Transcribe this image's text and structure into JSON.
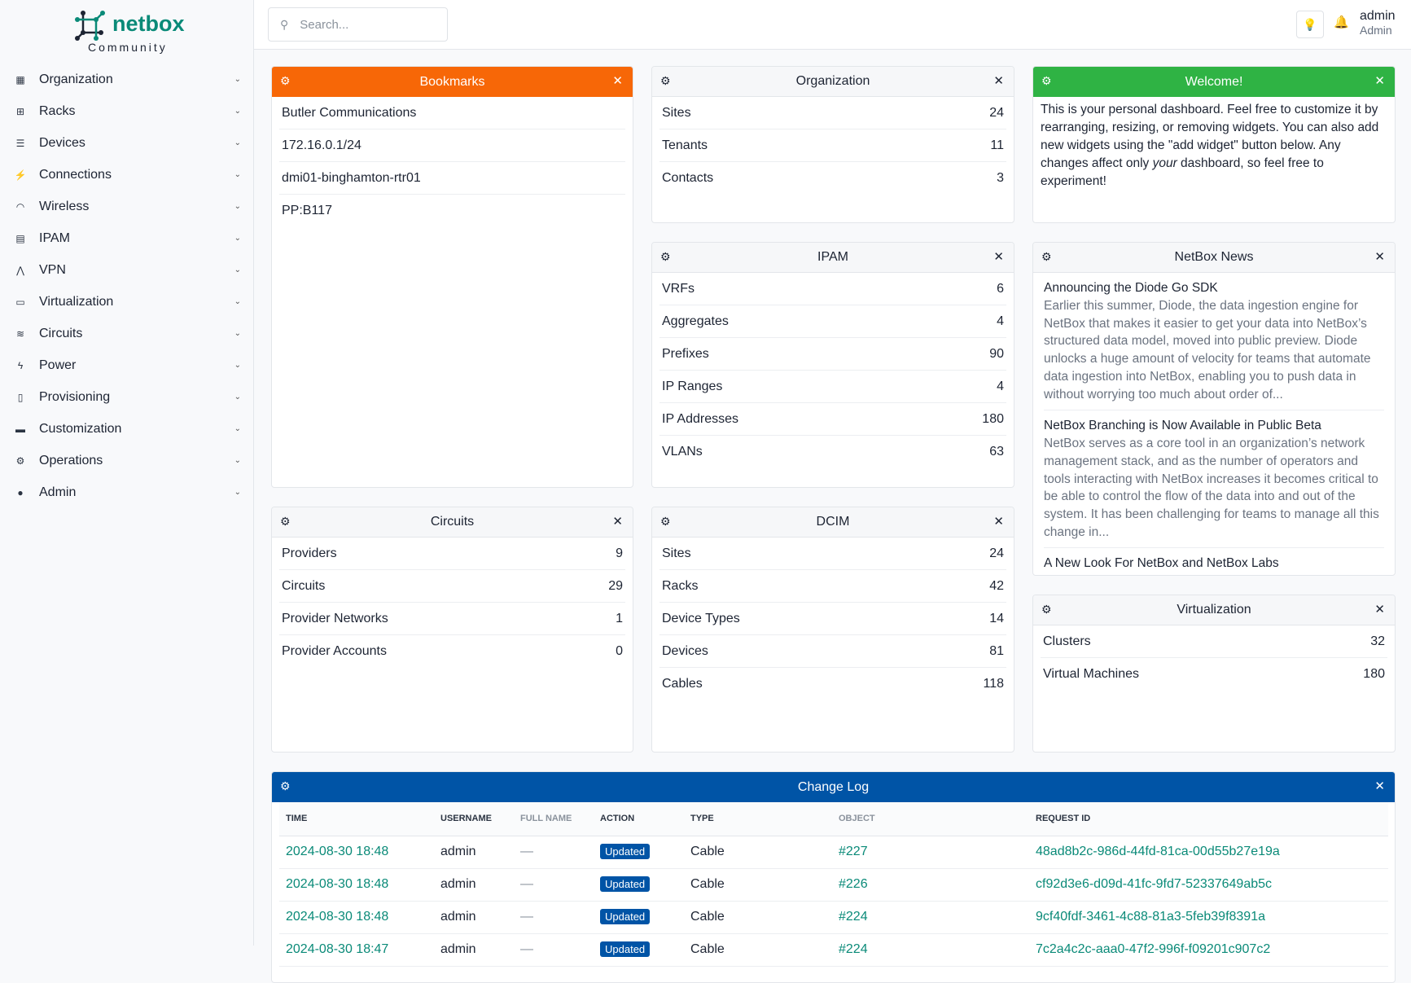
{
  "brand": {
    "name": "netbox",
    "edition": "Community",
    "color": "#0a8a78"
  },
  "sidebar": {
    "items": [
      {
        "label": "Organization",
        "icon": "building-icon"
      },
      {
        "label": "Racks",
        "icon": "rack-icon"
      },
      {
        "label": "Devices",
        "icon": "server-icon"
      },
      {
        "label": "Connections",
        "icon": "plug-icon"
      },
      {
        "label": "Wireless",
        "icon": "wifi-icon"
      },
      {
        "label": "IPAM",
        "icon": "ipam-icon"
      },
      {
        "label": "VPN",
        "icon": "vpn-icon"
      },
      {
        "label": "Virtualization",
        "icon": "monitor-icon"
      },
      {
        "label": "Circuits",
        "icon": "circuit-icon"
      },
      {
        "label": "Power",
        "icon": "bolt-icon"
      },
      {
        "label": "Provisioning",
        "icon": "file-icon"
      },
      {
        "label": "Customization",
        "icon": "toolbox-icon"
      },
      {
        "label": "Operations",
        "icon": "cogs-icon"
      },
      {
        "label": "Admin",
        "icon": "users-icon"
      }
    ]
  },
  "header": {
    "search_placeholder": "Search...",
    "user": "admin",
    "role": "Admin"
  },
  "bookmarks": {
    "title": "Bookmarks",
    "color": "#f76707",
    "items": [
      "Butler Communications",
      "172.16.0.1/24",
      "dmi01-binghamton-rtr01",
      "PP:B117"
    ]
  },
  "organization": {
    "title": "Organization",
    "rows": [
      {
        "label": "Sites",
        "value": "24"
      },
      {
        "label": "Tenants",
        "value": "11"
      },
      {
        "label": "Contacts",
        "value": "3"
      }
    ]
  },
  "welcome": {
    "title": "Welcome!",
    "color": "#2fb344",
    "text_before": "This is your personal dashboard. Feel free to customize it by rearranging, resizing, or removing widgets. You can also add new widgets using the \"add widget\" button below. Any changes affect only ",
    "text_em": "your",
    "text_after": " dashboard, so feel free to experiment!"
  },
  "ipam": {
    "title": "IPAM",
    "rows": [
      {
        "label": "VRFs",
        "value": "6"
      },
      {
        "label": "Aggregates",
        "value": "4"
      },
      {
        "label": "Prefixes",
        "value": "90"
      },
      {
        "label": "IP Ranges",
        "value": "4"
      },
      {
        "label": "IP Addresses",
        "value": "180"
      },
      {
        "label": "VLANs",
        "value": "63"
      }
    ]
  },
  "news": {
    "title": "NetBox News",
    "items": [
      {
        "title": "Announcing the Diode Go SDK",
        "body": "Earlier this summer, Diode, the data ingestion engine for NetBox that makes it easier to get your data into NetBox’s structured data model, moved into public preview. Diode unlocks a huge amount of velocity for teams that automate data ingestion into NetBox, enabling you to push data in without worrying too much about order of..."
      },
      {
        "title": "NetBox Branching is Now Available in Public Beta",
        "body": "NetBox serves as a core tool in an organization’s network management stack, and as the number of operators and tools interacting with NetBox increases it becomes critical to be able to control the flow of the data into and out of the system. It has been challenging for teams to manage all this change in..."
      },
      {
        "title": "A New Look For NetBox and NetBox Labs",
        "body": ""
      }
    ]
  },
  "circuits": {
    "title": "Circuits",
    "rows": [
      {
        "label": "Providers",
        "value": "9"
      },
      {
        "label": "Circuits",
        "value": "29"
      },
      {
        "label": "Provider Networks",
        "value": "1"
      },
      {
        "label": "Provider Accounts",
        "value": "0"
      }
    ]
  },
  "dcim": {
    "title": "DCIM",
    "rows": [
      {
        "label": "Sites",
        "value": "24"
      },
      {
        "label": "Racks",
        "value": "42"
      },
      {
        "label": "Device Types",
        "value": "14"
      },
      {
        "label": "Devices",
        "value": "81"
      },
      {
        "label": "Cables",
        "value": "118"
      }
    ]
  },
  "virtualization": {
    "title": "Virtualization",
    "rows": [
      {
        "label": "Clusters",
        "value": "32"
      },
      {
        "label": "Virtual Machines",
        "value": "180"
      }
    ]
  },
  "changelog": {
    "title": "Change Log",
    "color": "#0054a6",
    "columns": [
      "TIME",
      "USERNAME",
      "FULL NAME",
      "ACTION",
      "TYPE",
      "OBJECT",
      "REQUEST ID"
    ],
    "rows": [
      {
        "time": "2024-08-30 18:48",
        "user": "admin",
        "full": "—",
        "action": "Updated",
        "type": "Cable",
        "object": "#227",
        "request": "48ad8b2c-986d-44fd-81ca-00d55b27e19a"
      },
      {
        "time": "2024-08-30 18:48",
        "user": "admin",
        "full": "—",
        "action": "Updated",
        "type": "Cable",
        "object": "#226",
        "request": "cf92d3e6-d09d-41fc-9fd7-52337649ab5c"
      },
      {
        "time": "2024-08-30 18:48",
        "user": "admin",
        "full": "—",
        "action": "Updated",
        "type": "Cable",
        "object": "#224",
        "request": "9cf40fdf-3461-4c88-81a3-5feb39f8391a"
      },
      {
        "time": "2024-08-30 18:47",
        "user": "admin",
        "full": "—",
        "action": "Updated",
        "type": "Cable",
        "object": "#224",
        "request": "7c2a4c2c-aaa0-47f2-996f-f09201c907c2"
      }
    ]
  }
}
